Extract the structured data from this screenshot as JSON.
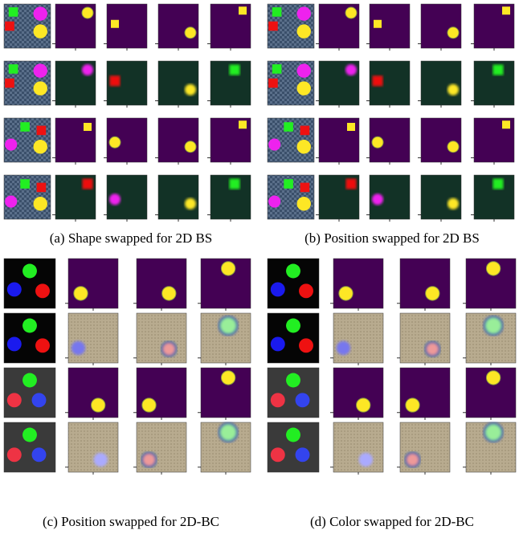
{
  "panels": [
    {
      "caption": "(a) Shape swapped for 2D BS"
    },
    {
      "caption": "(b) Position swapped for 2D BS"
    },
    {
      "caption": "(c) Position swapped for 2D-BC"
    },
    {
      "caption": "(d) Color swapped for 2D-BC"
    }
  ]
}
